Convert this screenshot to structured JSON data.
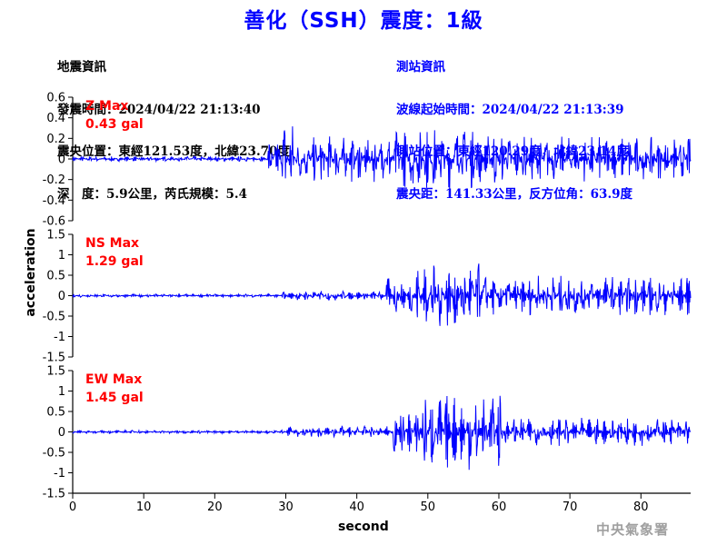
{
  "title": "善化（SSH）震度：1級",
  "quake_info": {
    "heading": "地震資訊",
    "origin_time": "發震時間：2024/04/22 21:13:40",
    "epicenter": "震央位置：東經121.53度，北緯23.70度",
    "depth_mag": "深　度：5.9公里，芮氏規模：5.4"
  },
  "station_info": {
    "heading": "測站資訊",
    "wave_start": "波線起始時間：2024/04/22 21:13:39",
    "location": "測站位置：東經120.29度，北緯23.14度",
    "distance": "震央距：141.33公里，反方位角：63.9度"
  },
  "footer": "中央氣象署",
  "chart_data": {
    "type": "line",
    "xlabel": "second",
    "ylabel": "acceleration",
    "xlim": [
      0,
      87
    ],
    "xticks": [
      0,
      10,
      20,
      30,
      40,
      50,
      60,
      70,
      80
    ],
    "color": "#0000ff",
    "panels": [
      {
        "name": "Z",
        "max_label": "Z Max",
        "max_value": "0.43 gal",
        "ylim": [
          -0.6,
          0.6
        ],
        "yticks": [
          "0.6",
          "0.4",
          "0.2",
          "0",
          "-0.2",
          "-0.4",
          "-0.6"
        ],
        "ytick_values": [
          0.6,
          0.4,
          0.2,
          0,
          -0.2,
          -0.4,
          -0.6
        ],
        "segments": [
          {
            "t0": 0,
            "t1": 27.5,
            "amp": 0.025
          },
          {
            "t0": 27.5,
            "t1": 29,
            "amp": 0.2
          },
          {
            "t0": 29,
            "t1": 31,
            "amp": 0.38
          },
          {
            "t0": 31,
            "t1": 45,
            "amp": 0.23
          },
          {
            "t0": 45,
            "t1": 60,
            "amp": 0.3
          },
          {
            "t0": 60,
            "t1": 87,
            "amp": 0.22
          }
        ]
      },
      {
        "name": "NS",
        "max_label": "NS Max",
        "max_value": "1.29 gal",
        "ylim": [
          -1.5,
          1.5
        ],
        "yticks": [
          "1.5",
          "1",
          "0.5",
          "0",
          "-0.5",
          "-1",
          "-1.5"
        ],
        "ytick_values": [
          1.5,
          1,
          0.5,
          0,
          -0.5,
          -1,
          -1.5
        ],
        "segments": [
          {
            "t0": 0,
            "t1": 29.5,
            "amp": 0.04
          },
          {
            "t0": 29.5,
            "t1": 44,
            "amp": 0.12
          },
          {
            "t0": 44,
            "t1": 48,
            "amp": 0.45
          },
          {
            "t0": 48,
            "t1": 58,
            "amp": 0.85
          },
          {
            "t0": 58,
            "t1": 87,
            "amp": 0.5
          }
        ]
      },
      {
        "name": "EW",
        "max_label": "EW Max",
        "max_value": "1.45 gal",
        "ylim": [
          -1.5,
          1.5
        ],
        "yticks": [
          "1.5",
          "1",
          "0.5",
          "0",
          "-0.5",
          "-1",
          "-1.5"
        ],
        "ytick_values": [
          1.5,
          1,
          0.5,
          0,
          -0.5,
          -1,
          -1.5
        ],
        "segments": [
          {
            "t0": 0,
            "t1": 30,
            "amp": 0.04
          },
          {
            "t0": 30,
            "t1": 45,
            "amp": 0.14
          },
          {
            "t0": 45,
            "t1": 48.5,
            "amp": 0.55
          },
          {
            "t0": 48.5,
            "t1": 60.5,
            "amp": 0.95
          },
          {
            "t0": 60.5,
            "t1": 87,
            "amp": 0.35
          }
        ]
      }
    ]
  }
}
